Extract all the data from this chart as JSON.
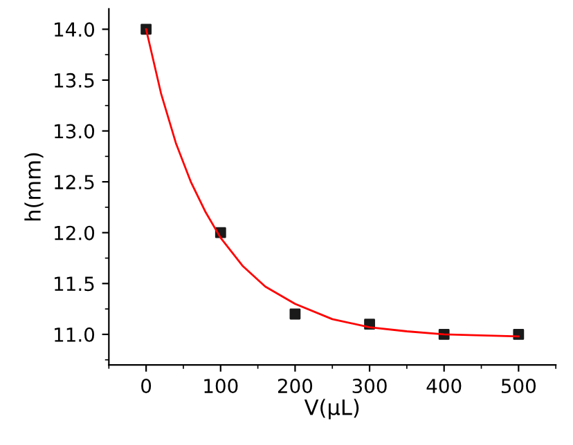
{
  "chart_data": {
    "type": "scatter",
    "xlabel": "V(μL)",
    "ylabel": "h(mm)",
    "xlim": [
      -50,
      550
    ],
    "ylim": [
      10.7,
      14.2
    ],
    "xticks": [
      0,
      100,
      200,
      300,
      400,
      500
    ],
    "yticks": [
      {
        "value": 11,
        "label": "11.0"
      },
      11.5,
      {
        "value": 12,
        "label": "12.0"
      },
      12.5,
      {
        "value": 13,
        "label": "13.0"
      },
      13.5,
      {
        "value": 14,
        "label": "14.0"
      }
    ],
    "marker": "square",
    "grid": false,
    "series": [
      {
        "color": "#1a1a1a",
        "x": [
          0,
          100,
          200,
          300,
          400,
          500
        ],
        "values": [
          14.0,
          12.0,
          11.2,
          11.1,
          11.0,
          11.0
        ]
      },
      {
        "type": "line",
        "marker": "none",
        "color": "#ff0000",
        "x": [
          0,
          20,
          40,
          60,
          80,
          100,
          130,
          160,
          200,
          250,
          300,
          350,
          400,
          450,
          500
        ],
        "values": [
          14.0,
          13.37,
          12.88,
          12.5,
          12.2,
          11.95,
          11.67,
          11.47,
          11.3,
          11.15,
          11.07,
          11.03,
          11.0,
          10.99,
          10.98
        ]
      }
    ]
  }
}
